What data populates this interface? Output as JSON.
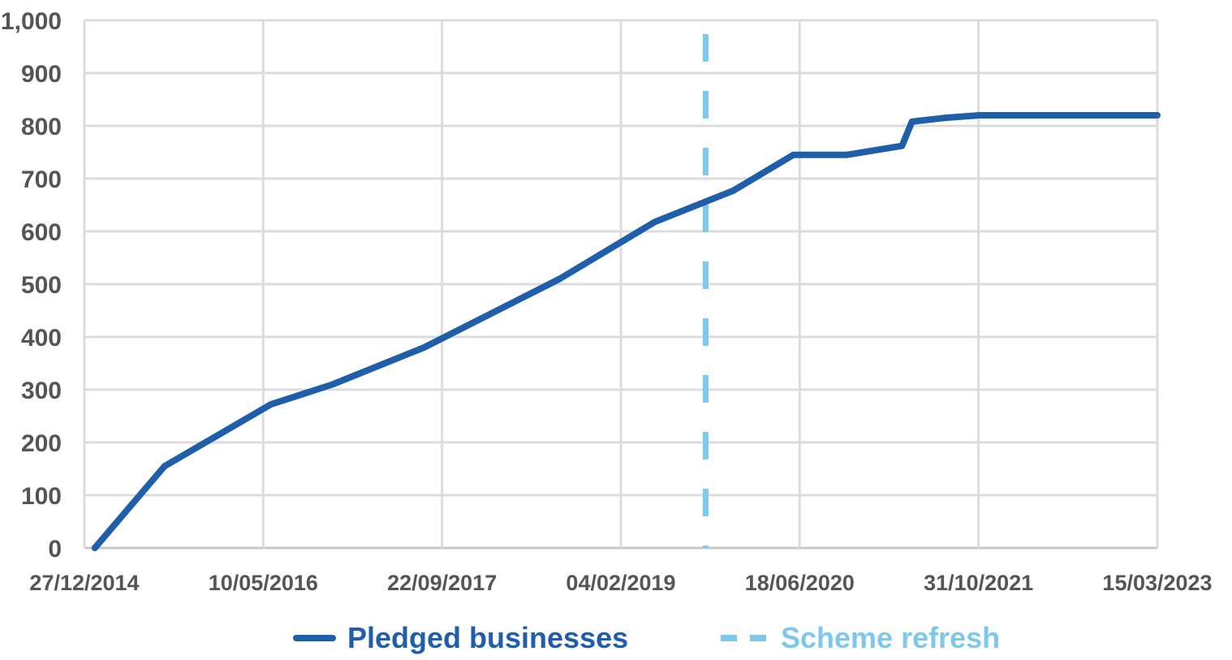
{
  "chart_data": {
    "type": "line",
    "title": "",
    "xlabel": "",
    "ylabel": "",
    "x_axis_type": "date",
    "xlim": [
      "27/12/2014",
      "15/03/2023"
    ],
    "ylim": [
      0,
      1000
    ],
    "y_ticks": [
      0,
      100,
      200,
      300,
      400,
      500,
      600,
      700,
      800,
      900,
      1000
    ],
    "y_tick_labels": [
      "0",
      "100",
      "200",
      "300",
      "400",
      "500",
      "600",
      "700",
      "800",
      "900",
      "1,000"
    ],
    "x_ticks": [
      "27/12/2014",
      "10/05/2016",
      "22/09/2017",
      "04/02/2019",
      "18/06/2020",
      "31/10/2021",
      "15/03/2023"
    ],
    "grid": true,
    "legend_position": "bottom",
    "series": [
      {
        "name": "Pledged businesses",
        "color": "#1f5ea8",
        "style": "solid",
        "points": [
          {
            "x": "2015-01-25",
            "y": 0
          },
          {
            "x": "2015-08-08",
            "y": 155
          },
          {
            "x": "2016-05-31",
            "y": 272
          },
          {
            "x": "2016-11-20",
            "y": 310
          },
          {
            "x": "2017-08-03",
            "y": 380
          },
          {
            "x": "2018-08-17",
            "y": 510
          },
          {
            "x": "2019-05-10",
            "y": 618
          },
          {
            "x": "2019-12-15",
            "y": 677
          },
          {
            "x": "2020-05-31",
            "y": 745
          },
          {
            "x": "2020-10-27",
            "y": 745
          },
          {
            "x": "2021-03-31",
            "y": 762
          },
          {
            "x": "2021-04-28",
            "y": 808
          },
          {
            "x": "2021-07-27",
            "y": 815
          },
          {
            "x": "2021-11-04",
            "y": 820
          },
          {
            "x": "2023-03-15",
            "y": 820
          }
        ]
      },
      {
        "name": "Scheme refresh",
        "color": "#7ec8ec",
        "style": "dashed",
        "marker_x": "2019-09-29"
      }
    ]
  }
}
